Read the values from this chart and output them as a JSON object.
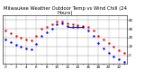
{
  "title": "Milwaukee Weather Outdoor Temp vs Wind Chill (24 Hours)",
  "title_fontsize": 3.8,
  "bg_color": "#ffffff",
  "plot_bg": "#ffffff",
  "grid_color": "#888888",
  "temp_color": "#ff0000",
  "windchill_color": "#0000ff",
  "marker_size": 1.5,
  "hours": [
    0,
    1,
    2,
    3,
    4,
    5,
    6,
    7,
    8,
    9,
    10,
    11,
    12,
    13,
    14,
    15,
    16,
    17,
    18,
    19,
    20,
    21,
    22,
    23
  ],
  "temp_values": [
    28,
    25,
    22,
    20,
    18,
    17,
    22,
    30,
    32,
    35,
    38,
    38,
    36,
    35,
    34,
    33,
    32,
    28,
    22,
    18,
    14,
    10,
    6,
    3
  ],
  "windchill_values": [
    18,
    15,
    12,
    10,
    8,
    7,
    13,
    22,
    26,
    30,
    35,
    36,
    33,
    32,
    32,
    32,
    28,
    22,
    14,
    8,
    3,
    -2,
    -5,
    -8
  ],
  "wc_line_x": [
    12,
    15
  ],
  "wc_line_y": [
    32,
    32
  ],
  "ylim": [
    -10,
    45
  ],
  "ytick_values": [
    0,
    10,
    20,
    30,
    40
  ],
  "ytick_labels": [
    "0",
    "10",
    "20",
    "30",
    "40"
  ],
  "xlim": [
    -0.5,
    23.5
  ],
  "xtick_positions": [
    0,
    1,
    2,
    3,
    4,
    5,
    6,
    7,
    8,
    9,
    10,
    11,
    12,
    13,
    14,
    15,
    16,
    17,
    18,
    19,
    20,
    21,
    22,
    23
  ],
  "xtick_labels": [
    "0",
    "",
    "2",
    "",
    "4",
    "",
    "6",
    "",
    "8",
    "",
    "10",
    "",
    "12",
    "",
    "14",
    "",
    "16",
    "",
    "18",
    "",
    "20",
    "",
    "22",
    ""
  ],
  "tick_fontsize": 3.0,
  "line_width": 0.7
}
